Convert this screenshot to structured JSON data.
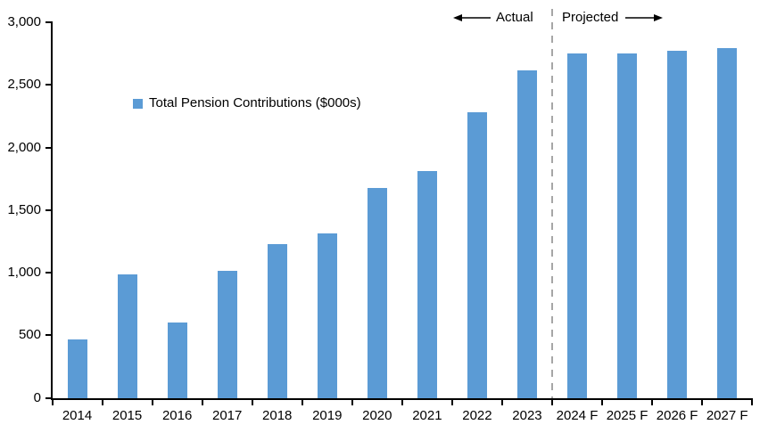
{
  "chart_data": {
    "type": "bar",
    "title": "",
    "legend": "Total Pension Contributions ($000s)",
    "categories": [
      "2014",
      "2015",
      "2016",
      "2017",
      "2018",
      "2019",
      "2020",
      "2021",
      "2022",
      "2023",
      "2024 F",
      "2025 F",
      "2026 F",
      "2027 F"
    ],
    "values": [
      465,
      985,
      600,
      1015,
      1225,
      1310,
      1675,
      1810,
      2280,
      2615,
      2755,
      2750,
      2775,
      2795
    ],
    "xlabel": "",
    "ylabel": "",
    "ylim": [
      0,
      3000
    ],
    "ytick_step": 500,
    "ytick_labels": [
      "0",
      "500",
      "1,000",
      "1,500",
      "2,000",
      "2,500",
      "3,000"
    ],
    "grid": false,
    "legend_position": "inside-top-left",
    "annotations": {
      "actual_label": "Actual",
      "projected_label": "Projected",
      "divider_after_category": "2023"
    },
    "colors": {
      "bar": "#5B9BD5",
      "axis": "#000000",
      "divider": "#A6A6A6",
      "text": "#000000"
    }
  }
}
